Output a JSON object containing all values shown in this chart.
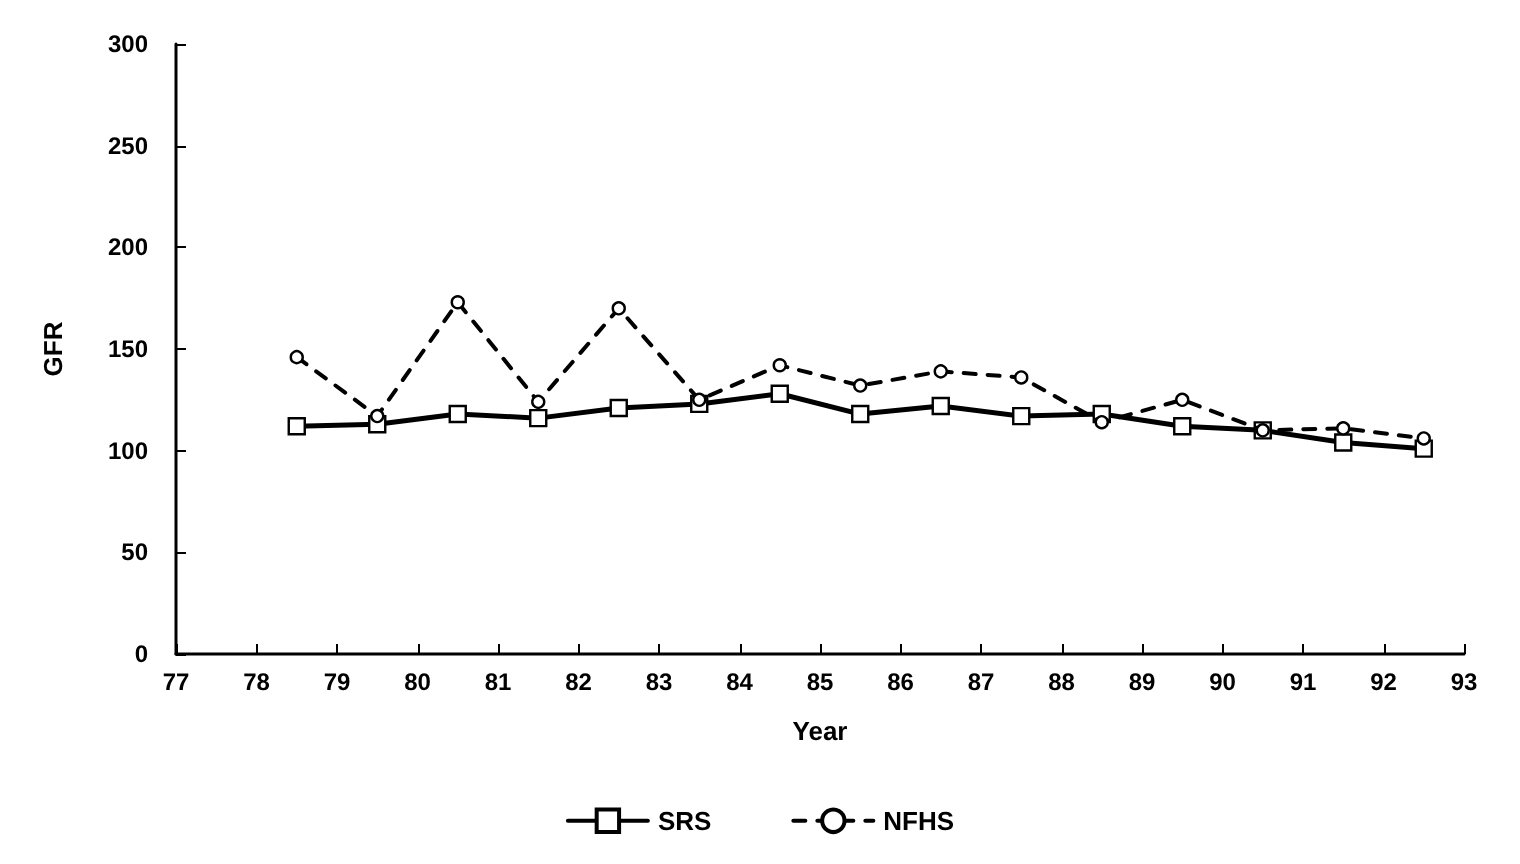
{
  "chart_data": {
    "type": "line",
    "xlabel": "Year",
    "ylabel": "GFR",
    "x": [
      78.5,
      79.5,
      80.5,
      81.5,
      82.5,
      83.5,
      84.5,
      85.5,
      86.5,
      87.5,
      88.5,
      89.5,
      90.5,
      91.5,
      92.5
    ],
    "series": [
      {
        "name": "SRS",
        "color": "#000000",
        "marker": "square",
        "line_style": "solid",
        "values": [
          112,
          113,
          118,
          116,
          121,
          123,
          128,
          118,
          122,
          117,
          118,
          112,
          110,
          104,
          101
        ]
      },
      {
        "name": "NFHS",
        "color": "#000000",
        "marker": "circle",
        "line_style": "dashed",
        "values": [
          146,
          117,
          173,
          124,
          170,
          125,
          142,
          132,
          139,
          136,
          114,
          125,
          110,
          111,
          106
        ]
      }
    ],
    "xlim": [
      77,
      93
    ],
    "xticks": [
      77,
      78,
      79,
      80,
      81,
      82,
      83,
      84,
      85,
      86,
      87,
      88,
      89,
      90,
      91,
      92,
      93
    ],
    "ylim": [
      0,
      300
    ],
    "yticks": [
      0,
      50,
      100,
      150,
      200,
      250,
      300
    ],
    "grid": false,
    "legend": "bottom"
  }
}
